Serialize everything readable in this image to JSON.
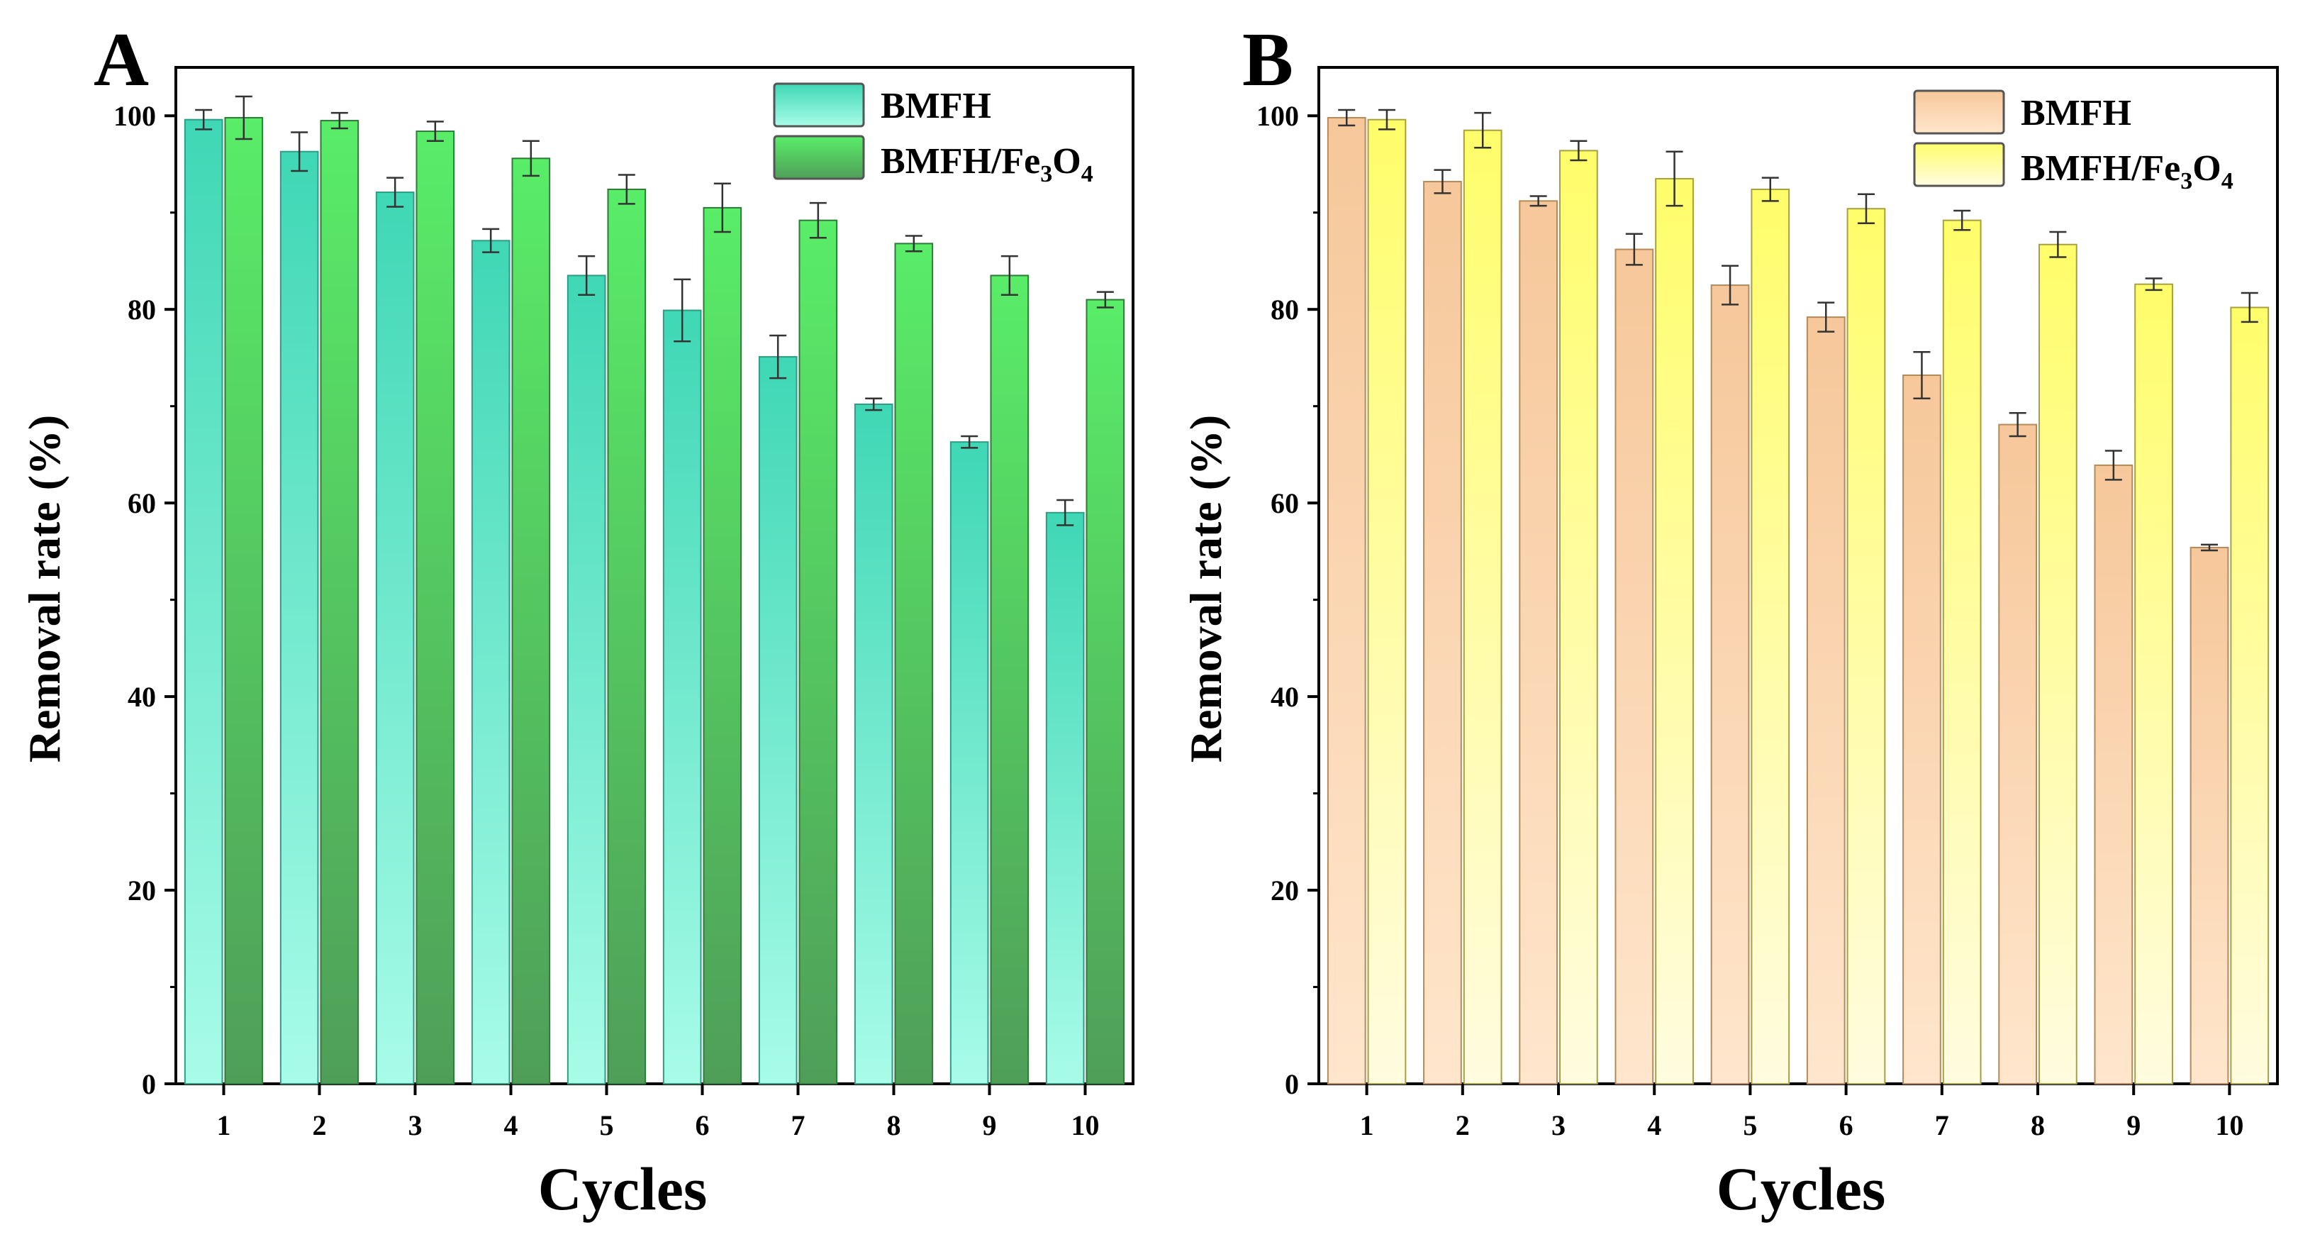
{
  "chart_data": [
    {
      "type": "bar",
      "panel_label": "A",
      "categories": [
        "1",
        "2",
        "3",
        "4",
        "5",
        "6",
        "7",
        "8",
        "9",
        "10"
      ],
      "series": [
        {
          "name": "BMFH",
          "values": [
            99.6,
            96.3,
            92.1,
            87.1,
            83.5,
            79.9,
            75.1,
            70.2,
            66.3,
            59.0
          ],
          "errors": [
            1.0,
            2.0,
            1.5,
            1.2,
            2.0,
            3.2,
            2.2,
            0.6,
            0.6,
            1.3
          ],
          "fill_top": "#3fd7b5",
          "fill_bottom": "#a8fce8",
          "stroke": "#2f9c84"
        },
        {
          "name": "BMFH/Fe3O4",
          "values": [
            99.8,
            99.5,
            98.4,
            95.6,
            92.4,
            90.5,
            89.2,
            86.8,
            83.5,
            81.0
          ],
          "errors": [
            2.2,
            0.8,
            1.0,
            1.8,
            1.5,
            2.5,
            1.8,
            0.8,
            2.0,
            0.8
          ],
          "fill_top": "#59ed68",
          "fill_bottom": "#4f9e58",
          "stroke": "#2f7a3a"
        }
      ],
      "xlabel": "Cycles",
      "ylabel": "Removal rate (%)",
      "ylim": [
        0,
        105
      ],
      "yticks": [
        "0",
        "20",
        "40",
        "60",
        "80",
        "100"
      ],
      "legend": {
        "position": "top-right",
        "entries": [
          {
            "main": "BMFH"
          },
          {
            "main": "BMFH/Fe",
            "sub1": "3",
            "mid": "O",
            "sub2": "4"
          }
        ]
      }
    },
    {
      "type": "bar",
      "panel_label": "B",
      "categories": [
        "1",
        "2",
        "3",
        "4",
        "5",
        "6",
        "7",
        "8",
        "9",
        "10"
      ],
      "series": [
        {
          "name": "BMFH",
          "values": [
            99.8,
            93.2,
            91.2,
            86.2,
            82.5,
            79.2,
            73.2,
            68.1,
            63.9,
            55.4
          ],
          "errors": [
            0.8,
            1.2,
            0.5,
            1.6,
            2.0,
            1.5,
            2.4,
            1.2,
            1.5,
            0.3
          ],
          "fill_top": "#f6c79a",
          "fill_bottom": "#ffe6cc",
          "stroke": "#b58a5a"
        },
        {
          "name": "BMFH/Fe3O4",
          "values": [
            99.6,
            98.5,
            96.4,
            93.5,
            92.4,
            90.4,
            89.2,
            86.7,
            82.6,
            80.2
          ],
          "errors": [
            1.0,
            1.8,
            1.0,
            2.8,
            1.2,
            1.5,
            1.0,
            1.3,
            0.6,
            1.5
          ],
          "fill_top": "#fffd6a",
          "fill_bottom": "#fffce0",
          "stroke": "#a8a040"
        }
      ],
      "xlabel": "Cycles",
      "ylabel": "Removal rate (%)",
      "ylim": [
        0,
        105
      ],
      "yticks": [
        "0",
        "20",
        "40",
        "60",
        "80",
        "100"
      ],
      "legend": {
        "position": "top-right",
        "entries": [
          {
            "main": "BMFH"
          },
          {
            "main": "BMFH/Fe",
            "sub1": "3",
            "mid": "O",
            "sub2": "4"
          }
        ]
      }
    }
  ]
}
